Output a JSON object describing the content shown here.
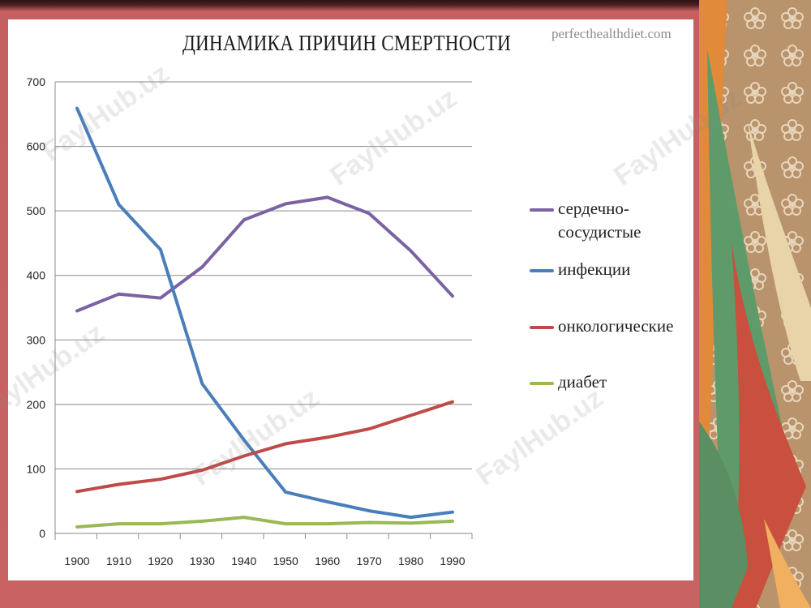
{
  "slide": {
    "source": "perfecthealthdiet.com",
    "watermark": "FaylHub.uz"
  },
  "chart_data": {
    "type": "line",
    "title": "ДИНАМИКА ПРИЧИН СМЕРТНОСТИ",
    "xlabel": "",
    "ylabel": "",
    "x": [
      1900,
      1910,
      1920,
      1930,
      1940,
      1950,
      1960,
      1970,
      1980,
      1990
    ],
    "ylim": [
      0,
      700
    ],
    "yticks": [
      0,
      100,
      200,
      300,
      400,
      500,
      600,
      700
    ],
    "grid": true,
    "legend_position": "right",
    "series": [
      {
        "name": "сердечно-сосудистые",
        "label_lines": [
          "сердечно-",
          "сосудистые"
        ],
        "color": "#7b62a3",
        "values": [
          345,
          371,
          365,
          413,
          486,
          511,
          521,
          496,
          438,
          368
        ]
      },
      {
        "name": "инфекции",
        "label_lines": [
          "инфекции"
        ],
        "color": "#4a7ebb",
        "values": [
          659,
          510,
          440,
          232,
          145,
          64,
          49,
          35,
          25,
          33
        ]
      },
      {
        "name": "онкологические",
        "label_lines": [
          "онкологические"
        ],
        "color": "#be4b48",
        "values": [
          65,
          76,
          84,
          98,
          120,
          139,
          149,
          162,
          183,
          204
        ]
      },
      {
        "name": "диабет",
        "label_lines": [
          "диабет"
        ],
        "color": "#98b954",
        "values": [
          10,
          15,
          15,
          19,
          25,
          15,
          15,
          17,
          16,
          19
        ]
      }
    ]
  }
}
